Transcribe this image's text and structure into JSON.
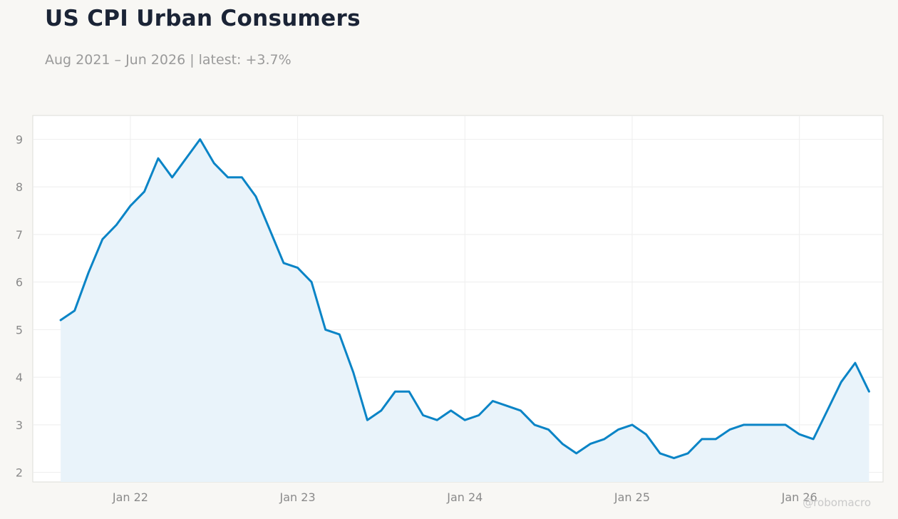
{
  "header": {
    "title": "US CPI Urban Consumers",
    "subtitle": "Aug 2021 – Jun 2026 | latest: +3.7%"
  },
  "watermark": "@robomacro",
  "colors": {
    "line": "#0a84c6",
    "area": "#e9f3fa",
    "plot_background": "#ffffff",
    "page_background": "#f8f7f4",
    "grid": "#eeeeee",
    "frame": "#dcdcd8"
  },
  "chart_data": {
    "type": "area",
    "title": "US CPI Urban Consumers",
    "subtitle": "Aug 2021 – Jun 2026 | latest: +3.7%",
    "xlabel": "",
    "ylabel": "",
    "x_start": "2021-08",
    "x_end": "2026-06",
    "xlim": [
      "2021-06",
      "2026-07"
    ],
    "ylim": [
      1.8,
      9.5
    ],
    "yticks": [
      2,
      3,
      4,
      5,
      6,
      7,
      8,
      9
    ],
    "xticks": [
      {
        "date": "2022-01",
        "label": "Jan 22"
      },
      {
        "date": "2023-01",
        "label": "Jan 23"
      },
      {
        "date": "2024-01",
        "label": "Jan 24"
      },
      {
        "date": "2025-01",
        "label": "Jan 25"
      },
      {
        "date": "2026-01",
        "label": "Jan 26"
      }
    ],
    "grid": true,
    "legend": "none",
    "series": [
      {
        "x": [
          "2021-08",
          "2021-09",
          "2021-10",
          "2021-11",
          "2021-12",
          "2022-01",
          "2022-02",
          "2022-03",
          "2022-04",
          "2022-05",
          "2022-06",
          "2022-07",
          "2022-08",
          "2022-09",
          "2022-10",
          "2022-11",
          "2022-12",
          "2023-01",
          "2023-02",
          "2023-03",
          "2023-04",
          "2023-05",
          "2023-06",
          "2023-07",
          "2023-08",
          "2023-09",
          "2023-10",
          "2023-11",
          "2023-12",
          "2024-01",
          "2024-02",
          "2024-03",
          "2024-04",
          "2024-05",
          "2024-06",
          "2024-07",
          "2024-08",
          "2024-09",
          "2024-10",
          "2024-11",
          "2024-12",
          "2025-01",
          "2025-02",
          "2025-03",
          "2025-04",
          "2025-05",
          "2025-06",
          "2025-07",
          "2025-08",
          "2025-09",
          "2025-10",
          "2025-11",
          "2025-12",
          "2026-01",
          "2026-02",
          "2026-03",
          "2026-04",
          "2026-05",
          "2026-06"
        ],
        "values": [
          5.2,
          5.4,
          6.2,
          6.9,
          7.2,
          7.6,
          7.9,
          8.6,
          8.2,
          8.6,
          9.0,
          8.5,
          8.2,
          8.2,
          7.8,
          7.1,
          6.4,
          6.3,
          6.0,
          5.0,
          4.9,
          4.1,
          3.1,
          3.3,
          3.7,
          3.7,
          3.2,
          3.1,
          3.3,
          3.1,
          3.2,
          3.5,
          3.4,
          3.3,
          3.0,
          2.9,
          2.6,
          2.4,
          2.6,
          2.7,
          2.9,
          3.0,
          2.8,
          2.4,
          2.3,
          2.4,
          2.7,
          2.7,
          2.9,
          3.0,
          3.0,
          3.0,
          3.0,
          2.8,
          2.7,
          3.3,
          3.9,
          4.3,
          3.7
        ]
      }
    ]
  }
}
